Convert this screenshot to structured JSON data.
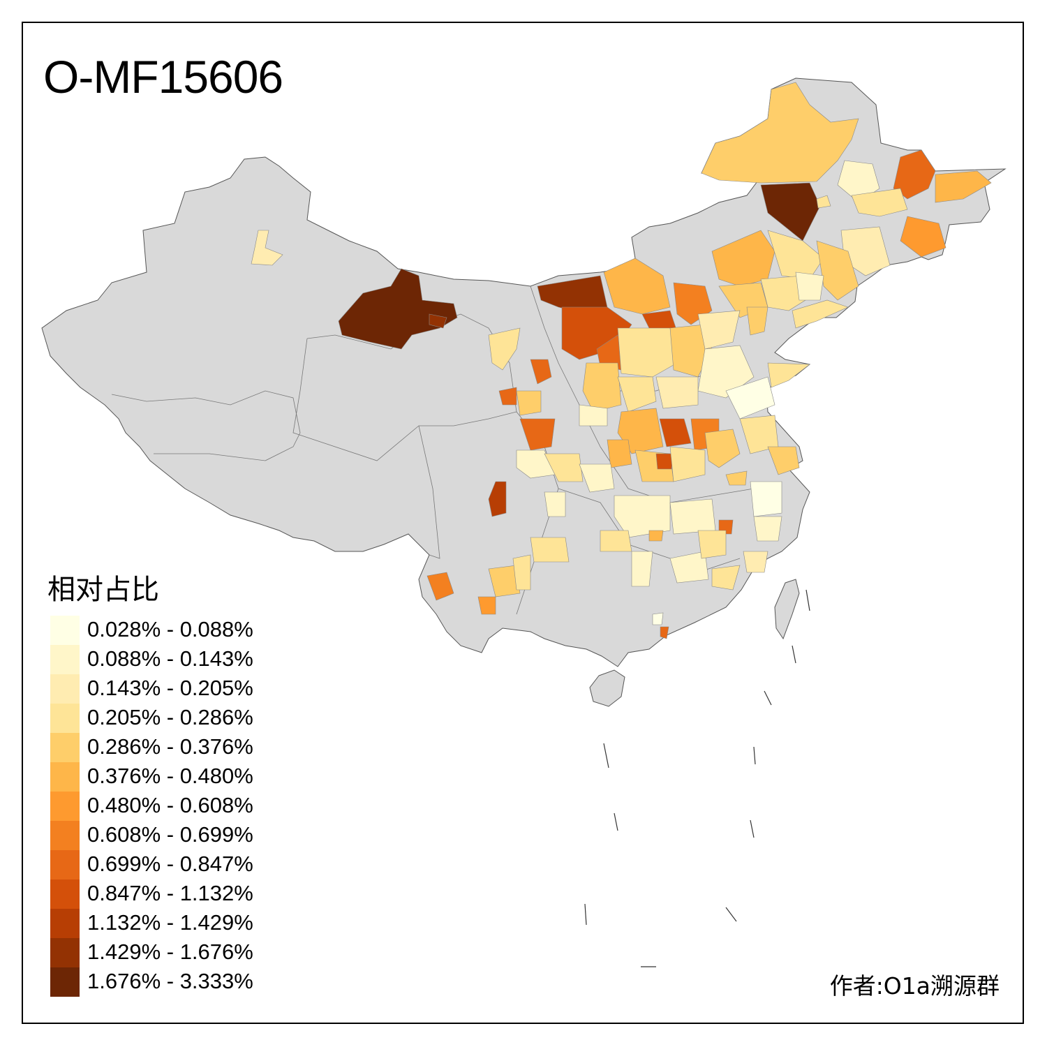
{
  "title": "O-MF15606",
  "legend": {
    "title": "相对占比",
    "items": [
      {
        "label": "0.028% - 0.088%",
        "color": "#ffffe5"
      },
      {
        "label": "0.088% - 0.143%",
        "color": "#fff6c9"
      },
      {
        "label": "0.143% - 0.205%",
        "color": "#ffecb1"
      },
      {
        "label": "0.205% - 0.286%",
        "color": "#fee497"
      },
      {
        "label": "0.286% - 0.376%",
        "color": "#fece6a"
      },
      {
        "label": "0.376% - 0.480%",
        "color": "#feb649"
      },
      {
        "label": "0.480% - 0.608%",
        "color": "#fe9a2f"
      },
      {
        "label": "0.608% - 0.699%",
        "color": "#f38020"
      },
      {
        "label": "0.699% - 0.847%",
        "color": "#e76816"
      },
      {
        "label": "0.847% - 1.132%",
        "color": "#d4500a"
      },
      {
        "label": "1.132% - 1.429%",
        "color": "#b73e04"
      },
      {
        "label": "1.429% - 1.676%",
        "color": "#933203"
      },
      {
        "label": "1.676% - 3.333%",
        "color": "#6d2605"
      }
    ]
  },
  "credit": "作者:O1a溯源群",
  "map": {
    "base_color": "#d9d9d9",
    "border_color": "#555555"
  }
}
